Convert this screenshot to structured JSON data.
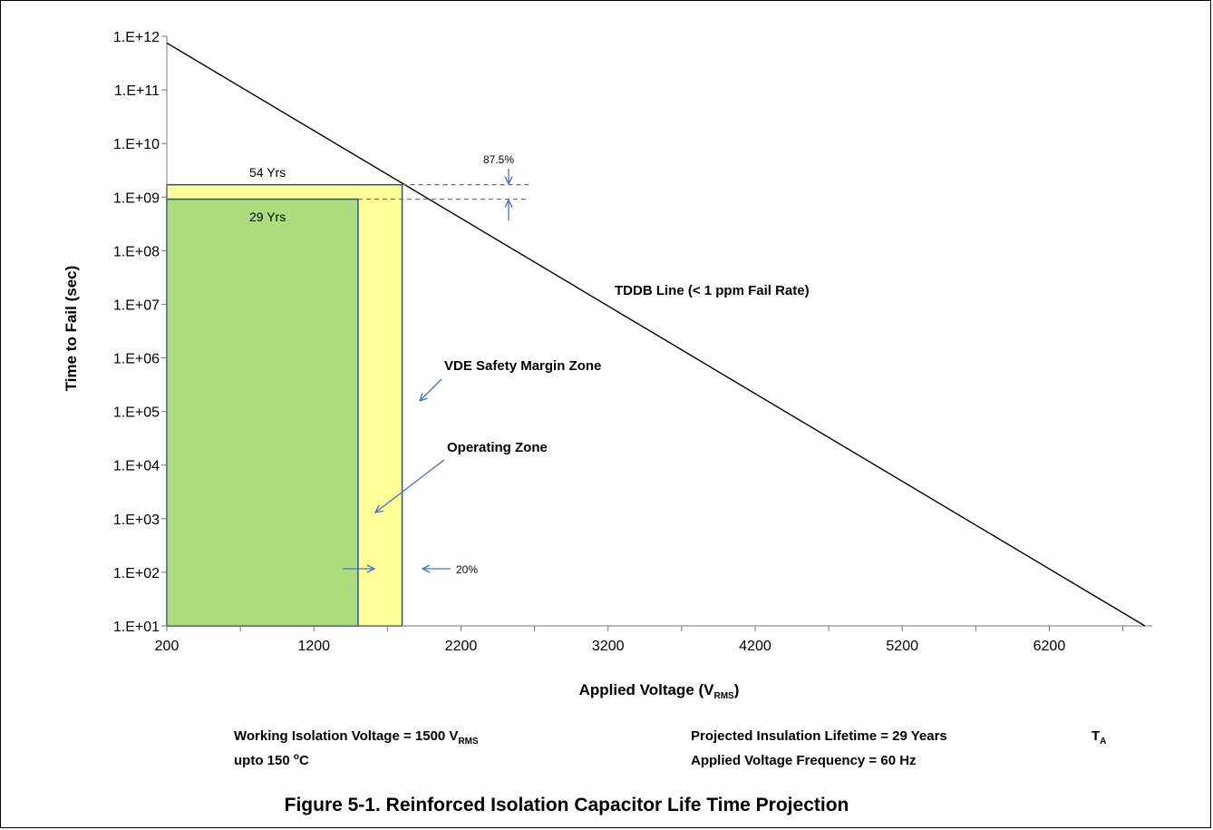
{
  "chart_data": {
    "type": "line",
    "title": "",
    "xlabel": "Applied Voltage (V",
    "xlabel_sub": "RMS",
    "xlabel_end": ")",
    "ylabel": "Time to Fail (sec)",
    "x_scale": "linear",
    "y_scale": "log",
    "xlim": [
      200,
      6900
    ],
    "ylim": [
      10,
      1000000000000
    ],
    "x_ticks": [
      200,
      1200,
      2200,
      3200,
      4200,
      5200,
      6200
    ],
    "x_tick_labels": [
      "200",
      "1200",
      "2200",
      "3200",
      "4200",
      "5200",
      "6200"
    ],
    "y_ticks": [
      10,
      100,
      1000,
      10000,
      100000,
      1000000,
      10000000,
      100000000,
      1000000000,
      10000000000,
      100000000000,
      1000000000000
    ],
    "y_tick_labels": [
      "1.E+01",
      "1.E+02",
      "1.E+03",
      "1.E+04",
      "1.E+05",
      "1.E+06",
      "1.E+07",
      "1.E+08",
      "1.E+09",
      "1.E+10",
      "1.E+11",
      "1.E+12"
    ],
    "grid": false,
    "series": [
      {
        "name": "TDDB Line (< 1 ppm Fail Rate)",
        "x": [
          200,
          6850
        ],
        "y": [
          750000000000,
          10
        ],
        "color": "#000000"
      }
    ],
    "zones": [
      {
        "name": "VDE Safety Margin Zone",
        "x": [
          200,
          1800
        ],
        "y": [
          10,
          1700000000
        ],
        "color": "#ffff99",
        "border": "#2e4f8f"
      },
      {
        "name": "Operating  Zone",
        "x": [
          200,
          1500
        ],
        "y": [
          10,
          915000000
        ],
        "color": "#addc7f",
        "border": "#2e4f8f"
      }
    ],
    "annotations": {
      "yrs_54": "54 Yrs",
      "yrs_29": "29 Yrs",
      "pct_875": "87.5%",
      "pct_20": "20%",
      "tddb_label": "TDDB Line (< 1 ppm Fail Rate)",
      "vde_label": "VDE Safety Margin Zone",
      "op_label": "Operating  Zone",
      "arrow_color": "#4472c4"
    }
  },
  "notes": {
    "working_main": "Working Isolation Voltage = 1500 V",
    "working_sub": "RMS",
    "upto_main": "upto 150 ",
    "upto_sup": "o",
    "upto_end": "C",
    "projected": "Projected Insulation Lifetime =  29 Years",
    "ta_main": "T",
    "ta_sub": "A",
    "frequency": "Applied Voltage Frequency = 60 Hz"
  },
  "caption": "Figure 5-1. Reinforced Isolation Capacitor Life Time Projection"
}
